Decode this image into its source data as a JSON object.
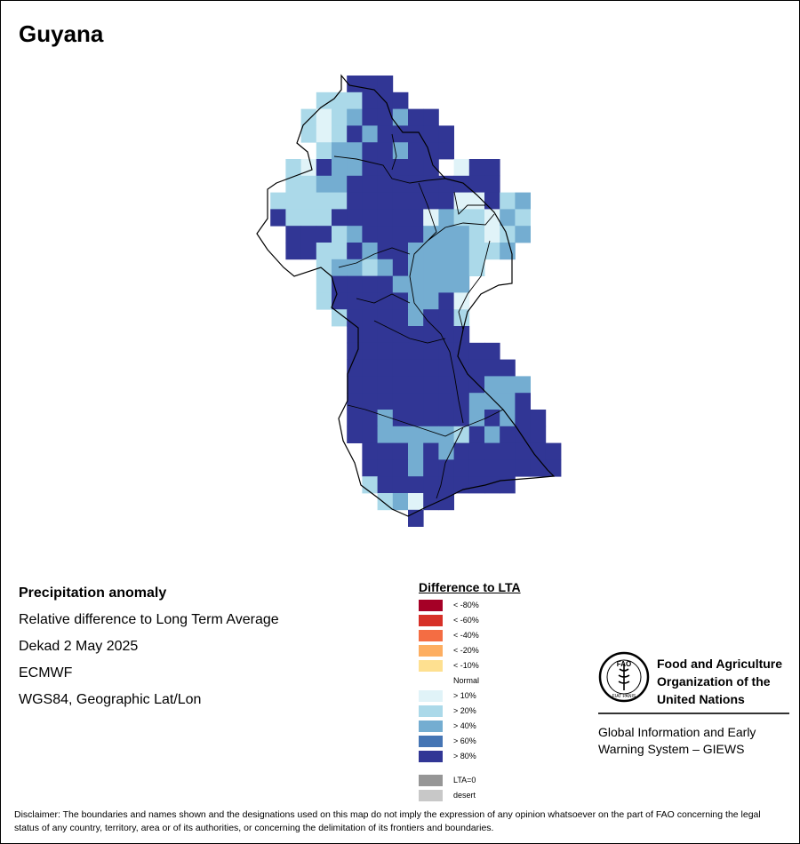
{
  "title": "Guyana",
  "info": {
    "heading": "Precipitation anomaly",
    "line1": "Relative difference to Long Term Average",
    "line2": "Dekad 2 May 2025",
    "line3": "ECMWF",
    "line4": "WGS84, Geographic Lat/Lon"
  },
  "legend": {
    "title": "Difference to LTA",
    "items": [
      {
        "label": "< -80%",
        "color": "#a50026"
      },
      {
        "label": "< -60%",
        "color": "#d73027"
      },
      {
        "label": "< -40%",
        "color": "#f46d43"
      },
      {
        "label": "< -20%",
        "color": "#fdae61"
      },
      {
        "label": "< -10%",
        "color": "#fee090"
      },
      {
        "label": "Normal",
        "color": "#ffffff"
      },
      {
        "label": "> 10%",
        "color": "#e0f3f8"
      },
      {
        "label": "> 20%",
        "color": "#abd9e9"
      },
      {
        "label": "> 40%",
        "color": "#74add1"
      },
      {
        "label": "> 60%",
        "color": "#4575b4"
      },
      {
        "label": "> 80%",
        "color": "#313695"
      }
    ],
    "extra": [
      {
        "label": "LTA=0",
        "color": "#969696"
      },
      {
        "label": "desert",
        "color": "#c8c8c8"
      }
    ]
  },
  "fao": {
    "name_line1": "Food and Agriculture",
    "name_line2": "Organization of the",
    "name_line3": "United Nations",
    "giews_line1": "Global Information and Early",
    "giews_line2": "Warning System – GIEWS",
    "logo_text": "FAO",
    "motto": "FIAT PANIS"
  },
  "disclaimer": "Disclaimer: The boundaries and names shown and the designations used on this map do not imply the expression of any opinion whatsoever on the part of FAO concerning the legal status of any country, territory, area or of its authorities, or concerning the delimitation of its frontiers and boundaries.",
  "map_grid": {
    "rows": [
      "......bbb.......",
      "....lllbbb......",
      "...lwlmbbmbb....",
      "...lwlbmbbbbb...",
      "....lmmbbmbbb...",
      "..lwbmmbbbbb.wbb",
      "..llmmbbbbbbbbbb",
      ".lllllbbbbbbbwwblm",
      ".blllbbbbbbwmllwml",
      "..bbblmbbbbmmmlwlm",
      "..bbllbmbbmmmmllm",
      "....lmmlmbmmmml..",
      "....lbbbbmmmmm...",
      "....lbbbbbmmbw...",
      ".....lbbbbmbbl...",
      "......bbbbbbbb...",
      "......bbbbbbbbbb.",
      "......bbbbbbbbbbb",
      "......bbbbbbbbbmmm",
      "......bbbbbbbbmmmb",
      "......bbmbbbbbmbmbb",
      "......bbmmmmmlbmbbb",
      ".......bbbmbmbbbbbbb",
      ".......bbbmbbbbbbbbb",
      ".......lbbbbbbbbb...",
      "........lmwbb.......",
      "..........b........."
    ],
    "classes": {
      "w": "#e0f3f8",
      "l": "#abd9e9",
      "m": "#74add1",
      "b": "#313695"
    }
  }
}
